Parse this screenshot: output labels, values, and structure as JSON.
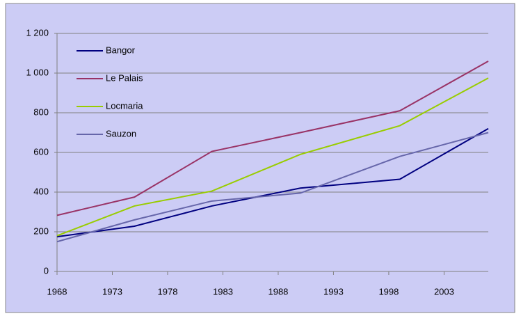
{
  "chart_data": {
    "type": "line",
    "x": [
      1968,
      1975,
      1982,
      1990,
      1999,
      2007
    ],
    "series": [
      {
        "name": "Bangor",
        "color": "#000080",
        "values": [
          175,
          228,
          330,
          420,
          465,
          720
        ]
      },
      {
        "name": "Le Palais",
        "color": "#993366",
        "values": [
          283,
          375,
          605,
          700,
          810,
          1060
        ]
      },
      {
        "name": "Locmaria",
        "color": "#99cc00",
        "values": [
          180,
          330,
          405,
          590,
          735,
          975
        ]
      },
      {
        "name": "Sauzon",
        "color": "#6666aa",
        "values": [
          150,
          260,
          355,
          395,
          580,
          700
        ]
      }
    ],
    "xlim": [
      1968,
      2007
    ],
    "xticks": [
      1968,
      1973,
      1978,
      1983,
      1988,
      1993,
      1998,
      2003
    ],
    "ylim": [
      0,
      1200
    ],
    "yticks": [
      0,
      200,
      400,
      600,
      800,
      {
        "value": 1000,
        "label": "1 000"
      },
      {
        "value": 1200,
        "label": "1 200"
      }
    ],
    "grid": true,
    "legend": "upper-left"
  }
}
